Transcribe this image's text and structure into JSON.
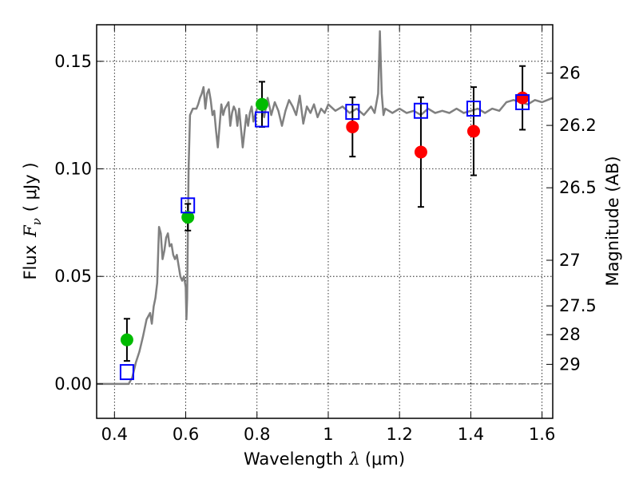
{
  "chart_data": {
    "type": "scatter",
    "xlabel": {
      "prefix": "Wavelength",
      "symbol": "λ",
      "unit": "(μm)"
    },
    "ylabel": {
      "prefix": "Flux",
      "symbol": "F",
      "sub": "ν",
      "unit": "( μJy )"
    },
    "y2label": "Magnitude (AB)",
    "xlim": [
      0.35,
      1.63
    ],
    "ylim": [
      -0.016,
      0.167
    ],
    "x_ticks": [
      0.4,
      0.6,
      0.8,
      1.0,
      1.2,
      1.4,
      1.6
    ],
    "x_tick_labels": [
      "0.4",
      "0.6",
      "0.8",
      "1",
      "1.2",
      "1.4",
      "1.6"
    ],
    "y_ticks": [
      0.0,
      0.05,
      0.1,
      0.15
    ],
    "y_tick_labels": [
      "0.00",
      "0.05",
      "0.10",
      "0.15"
    ],
    "mag_ticks": [
      {
        "label": "26",
        "flux": 0.1445
      },
      {
        "label": "26.2",
        "flux": 0.1202
      },
      {
        "label": "26.5",
        "flux": 0.0912
      },
      {
        "label": "27",
        "flux": 0.0575
      },
      {
        "label": "27.5",
        "flux": 0.0363
      },
      {
        "label": "28",
        "flux": 0.0229
      },
      {
        "label": "29",
        "flux": 0.0091
      }
    ],
    "grid": true,
    "zero_line": true,
    "series": [
      {
        "kind": "line",
        "color": "#808080",
        "x": [
          0.35,
          0.42,
          0.44,
          0.45,
          0.46,
          0.47,
          0.48,
          0.49,
          0.5,
          0.505,
          0.51,
          0.515,
          0.52,
          0.525,
          0.53,
          0.535,
          0.54,
          0.545,
          0.55,
          0.555,
          0.56,
          0.565,
          0.57,
          0.575,
          0.58,
          0.585,
          0.59,
          0.595,
          0.6,
          0.602,
          0.604,
          0.606,
          0.608,
          0.612,
          0.62,
          0.63,
          0.635,
          0.64,
          0.645,
          0.65,
          0.655,
          0.66,
          0.665,
          0.67,
          0.675,
          0.68,
          0.685,
          0.69,
          0.695,
          0.7,
          0.705,
          0.71,
          0.72,
          0.725,
          0.73,
          0.735,
          0.74,
          0.745,
          0.75,
          0.76,
          0.77,
          0.775,
          0.78,
          0.785,
          0.79,
          0.8,
          0.81,
          0.82,
          0.83,
          0.84,
          0.85,
          0.86,
          0.87,
          0.88,
          0.89,
          0.9,
          0.91,
          0.92,
          0.93,
          0.94,
          0.95,
          0.96,
          0.97,
          0.98,
          0.99,
          1.0,
          1.02,
          1.04,
          1.06,
          1.08,
          1.1,
          1.12,
          1.13,
          1.14,
          1.145,
          1.15,
          1.155,
          1.16,
          1.18,
          1.2,
          1.22,
          1.24,
          1.26,
          1.28,
          1.3,
          1.32,
          1.34,
          1.36,
          1.38,
          1.4,
          1.42,
          1.44,
          1.46,
          1.48,
          1.5,
          1.52,
          1.54,
          1.56,
          1.58,
          1.6,
          1.63
        ],
        "y": [
          0.0,
          0.0,
          0.0,
          0.003,
          0.01,
          0.015,
          0.022,
          0.03,
          0.033,
          0.028,
          0.036,
          0.04,
          0.047,
          0.073,
          0.07,
          0.058,
          0.062,
          0.068,
          0.07,
          0.064,
          0.065,
          0.06,
          0.058,
          0.06,
          0.055,
          0.05,
          0.048,
          0.05,
          0.045,
          0.03,
          0.04,
          0.07,
          0.1,
          0.125,
          0.128,
          0.128,
          0.13,
          0.133,
          0.135,
          0.138,
          0.128,
          0.135,
          0.137,
          0.132,
          0.125,
          0.127,
          0.118,
          0.11,
          0.12,
          0.13,
          0.125,
          0.128,
          0.131,
          0.12,
          0.126,
          0.129,
          0.127,
          0.12,
          0.128,
          0.11,
          0.125,
          0.12,
          0.126,
          0.129,
          0.122,
          0.128,
          0.132,
          0.124,
          0.133,
          0.125,
          0.131,
          0.127,
          0.12,
          0.127,
          0.132,
          0.129,
          0.125,
          0.134,
          0.121,
          0.129,
          0.126,
          0.13,
          0.124,
          0.128,
          0.126,
          0.13,
          0.127,
          0.129,
          0.126,
          0.128,
          0.125,
          0.129,
          0.126,
          0.135,
          0.164,
          0.135,
          0.125,
          0.128,
          0.126,
          0.128,
          0.126,
          0.127,
          0.125,
          0.128,
          0.126,
          0.127,
          0.126,
          0.128,
          0.126,
          0.127,
          0.128,
          0.126,
          0.128,
          0.127,
          0.131,
          0.132,
          0.131,
          0.13,
          0.132,
          0.131,
          0.133
        ]
      },
      {
        "kind": "observed",
        "color": "#00bb00",
        "points": [
          {
            "x": 0.435,
            "y": 0.0205,
            "err": 0.0098
          },
          {
            "x": 0.606,
            "y": 0.0775,
            "err": 0.0062
          },
          {
            "x": 0.814,
            "y": 0.13,
            "err": 0.0105
          }
        ]
      },
      {
        "kind": "observed",
        "color": "#ff0000",
        "points": [
          {
            "x": 1.068,
            "y": 0.1195,
            "err": 0.0138
          },
          {
            "x": 1.26,
            "y": 0.1078,
            "err": 0.0255
          },
          {
            "x": 1.408,
            "y": 0.1175,
            "err": 0.0205
          },
          {
            "x": 1.545,
            "y": 0.133,
            "err": 0.0148
          }
        ]
      },
      {
        "kind": "model",
        "color": "#0000ff",
        "points": [
          {
            "x": 0.435,
            "y": 0.0055
          },
          {
            "x": 0.606,
            "y": 0.083
          },
          {
            "x": 0.814,
            "y": 0.123
          },
          {
            "x": 1.068,
            "y": 0.1265
          },
          {
            "x": 1.26,
            "y": 0.127
          },
          {
            "x": 1.408,
            "y": 0.128
          },
          {
            "x": 1.545,
            "y": 0.131
          }
        ]
      }
    ]
  }
}
